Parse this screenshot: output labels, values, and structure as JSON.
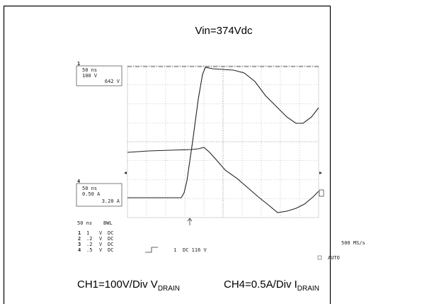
{
  "title": "Vin=374Vdc",
  "ch1_box": [
    "50 ns",
    "100 V",
    "642 V"
  ],
  "ch4_box": [
    "0.50 A",
    "3.20 A",
    "50 ns"
  ],
  "timebase": [
    "50 ns",
    "BWL"
  ],
  "channels": [
    [
      "1",
      "1",
      "V",
      "DC"
    ],
    [
      "2",
      ".2",
      "V",
      "DC"
    ],
    [
      "3",
      ".2",
      "V",
      "DC"
    ],
    [
      "4",
      ".5",
      "V",
      "DC"
    ]
  ],
  "trigger": [
    "1",
    "DC 116 V"
  ],
  "sample_rate": "500 MS/s",
  "mode": "AUTO",
  "captions": [
    {
      "text": "CH1=100V/Div V",
      "sub": "DRAIN"
    },
    {
      "text": "CH4=0.5A/Div I",
      "sub": "DRAIN"
    }
  ]
}
